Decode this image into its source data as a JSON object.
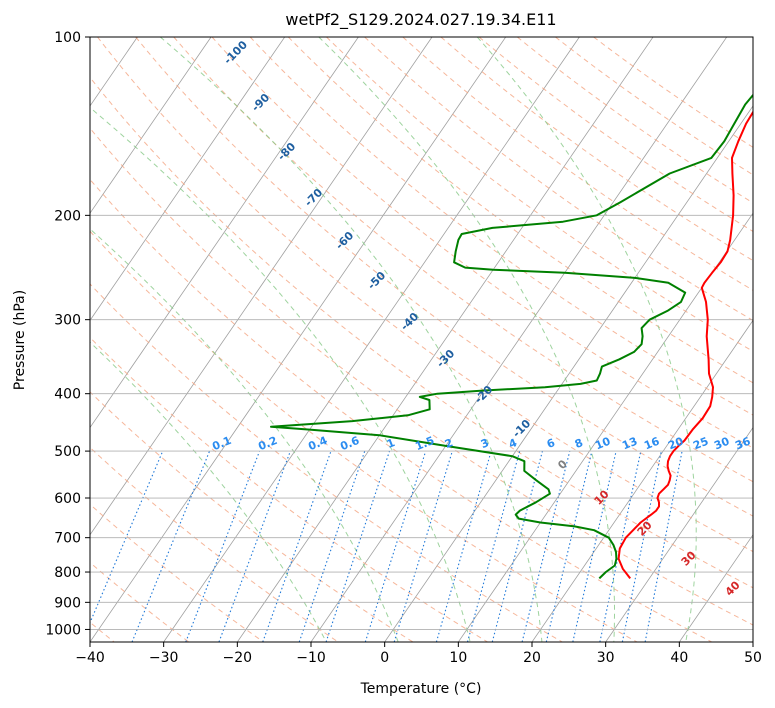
{
  "chart_data": {
    "type": "line",
    "title": "wetPf2_S129.2024.027.19.34.E11",
    "xlabel": "Temperature (°C)",
    "ylabel": "Pressure (hPa)",
    "xlim": [
      -40,
      50
    ],
    "ylim": [
      1050,
      100
    ],
    "y_scale": "log",
    "grid": true,
    "x_ticks": [
      "−40",
      "−30",
      "−20",
      "−10",
      "0",
      "10",
      "20",
      "30",
      "40",
      "50"
    ],
    "y_ticks": [
      {
        "p": 100,
        "label": "100"
      },
      {
        "p": 200,
        "label": "200"
      },
      {
        "p": 300,
        "label": "300"
      },
      {
        "p": 400,
        "label": "400"
      },
      {
        "p": 500,
        "label": "500"
      },
      {
        "p": 600,
        "label": "600"
      },
      {
        "p": 700,
        "label": "700"
      },
      {
        "p": 800,
        "label": "800"
      },
      {
        "p": 900,
        "label": "900"
      },
      {
        "p": 1000,
        "label": "1000"
      }
    ],
    "series": [
      {
        "color": "#ff0000",
        "points": [
          [
            27.4,
            820
          ],
          [
            25.5,
            790
          ],
          [
            24.0,
            760
          ],
          [
            23.2,
            730
          ],
          [
            23.0,
            700
          ],
          [
            23.3,
            680
          ],
          [
            23.6,
            660
          ],
          [
            24.3,
            640
          ],
          [
            24.6,
            630
          ],
          [
            24.6,
            620
          ],
          [
            24.2,
            610
          ],
          [
            23.6,
            600
          ],
          [
            23.4,
            590
          ],
          [
            23.6,
            580
          ],
          [
            23.8,
            570
          ],
          [
            23.6,
            560
          ],
          [
            23.3,
            550
          ],
          [
            22.6,
            540
          ],
          [
            22.0,
            530
          ],
          [
            21.6,
            520
          ],
          [
            21.4,
            510
          ],
          [
            21.4,
            500
          ],
          [
            21.6,
            490
          ],
          [
            21.9,
            480
          ],
          [
            22.0,
            460
          ],
          [
            22.3,
            440
          ],
          [
            22.2,
            420
          ],
          [
            21.6,
            405
          ],
          [
            20.8,
            390
          ],
          [
            19.0,
            370
          ],
          [
            17.6,
            350
          ],
          [
            15.2,
            320
          ],
          [
            13.8,
            300
          ],
          [
            11.9,
            280
          ],
          [
            10.0,
            265
          ],
          [
            9.9,
            260
          ],
          [
            10.0,
            250
          ],
          [
            10.2,
            240
          ],
          [
            10.1,
            230
          ],
          [
            9.4,
            220
          ],
          [
            7.5,
            200
          ],
          [
            5.7,
            185
          ],
          [
            3.5,
            170
          ],
          [
            2.0,
            160
          ],
          [
            1.3,
            150
          ],
          [
            0.7,
            140
          ],
          [
            0.5,
            130
          ],
          [
            1.3,
            125
          ],
          [
            1.8,
            120
          ],
          [
            2.3,
            115
          ],
          [
            3.4,
            105
          ],
          [
            4.5,
            100
          ]
        ]
      },
      {
        "color": "#008000",
        "points": [
          [
            23.2,
            820
          ],
          [
            23.5,
            800
          ],
          [
            24.1,
            780
          ],
          [
            23.7,
            760
          ],
          [
            23.0,
            740
          ],
          [
            22.0,
            720
          ],
          [
            20.7,
            700
          ],
          [
            18.0,
            680
          ],
          [
            15.0,
            670
          ],
          [
            10.0,
            660
          ],
          [
            6.7,
            650
          ],
          [
            5.9,
            640
          ],
          [
            6.1,
            630
          ],
          [
            7.5,
            610
          ],
          [
            8.6,
            590
          ],
          [
            8.0,
            580
          ],
          [
            5.5,
            560
          ],
          [
            3.0,
            540
          ],
          [
            2.1,
            520
          ],
          [
            0.0,
            510
          ],
          [
            -10.0,
            490
          ],
          [
            -20.0,
            470
          ],
          [
            -30.0,
            460
          ],
          [
            -35.5,
            455
          ],
          [
            -25.0,
            445
          ],
          [
            -18.0,
            435
          ],
          [
            -15.6,
            425
          ],
          [
            -16.5,
            410
          ],
          [
            -18.1,
            405
          ],
          [
            -16.0,
            400
          ],
          [
            -10.0,
            395
          ],
          [
            -2.0,
            390
          ],
          [
            2.5,
            385
          ],
          [
            4.4,
            380
          ],
          [
            4.2,
            370
          ],
          [
            3.8,
            360
          ],
          [
            5.5,
            350
          ],
          [
            6.8,
            340
          ],
          [
            7.1,
            330
          ],
          [
            6.5,
            320
          ],
          [
            5.6,
            310
          ],
          [
            5.9,
            300
          ],
          [
            7.5,
            290
          ],
          [
            8.5,
            280
          ],
          [
            8.2,
            270
          ],
          [
            5.0,
            260
          ],
          [
            0.0,
            255
          ],
          [
            -10.0,
            250
          ],
          [
            -20.0,
            247
          ],
          [
            -24.0,
            245
          ],
          [
            -26.0,
            240
          ],
          [
            -26.8,
            230
          ],
          [
            -27.5,
            220
          ],
          [
            -27.6,
            215
          ],
          [
            -24.0,
            210
          ],
          [
            -15.0,
            205
          ],
          [
            -11.0,
            200
          ],
          [
            -9.0,
            190
          ],
          [
            -5.0,
            170
          ],
          [
            -0.8,
            160
          ],
          [
            -0.6,
            150
          ],
          [
            -0.9,
            140
          ],
          [
            -1.2,
            130
          ],
          [
            -1.0,
            125
          ],
          [
            -0.5,
            120
          ],
          [
            0.5,
            115
          ],
          [
            1.8,
            108
          ],
          [
            2.2,
            102
          ],
          [
            2.2,
            100
          ]
        ]
      }
    ],
    "dry_adiabat_labels": [
      "-100",
      "-90",
      "-80",
      "-70",
      "-60",
      "-50",
      "-40",
      "-30",
      "-20",
      "-10",
      "0",
      "10",
      "20",
      "30",
      "40"
    ],
    "mixing_ratio_labels": [
      "0.1",
      "0.2",
      "0.4",
      "0.6",
      "1",
      "1.5",
      "2",
      "3",
      "4",
      "6",
      "8",
      "10",
      "13",
      "16",
      "20",
      "25",
      "30",
      "36"
    ],
    "colors": {
      "grid": "#b0b0b0",
      "skew_isotherm": "#a0a0a0",
      "dry_adiabat": "#f4a582",
      "moist_adiabat": "#86c886",
      "mixing_ratio": "#1f78d8",
      "label_dry_cold": "#1f5fa0",
      "label_dry_warm": "#d62728",
      "label_zero": "#808080",
      "label_mixing_ratio": "#2b8cf0"
    }
  }
}
